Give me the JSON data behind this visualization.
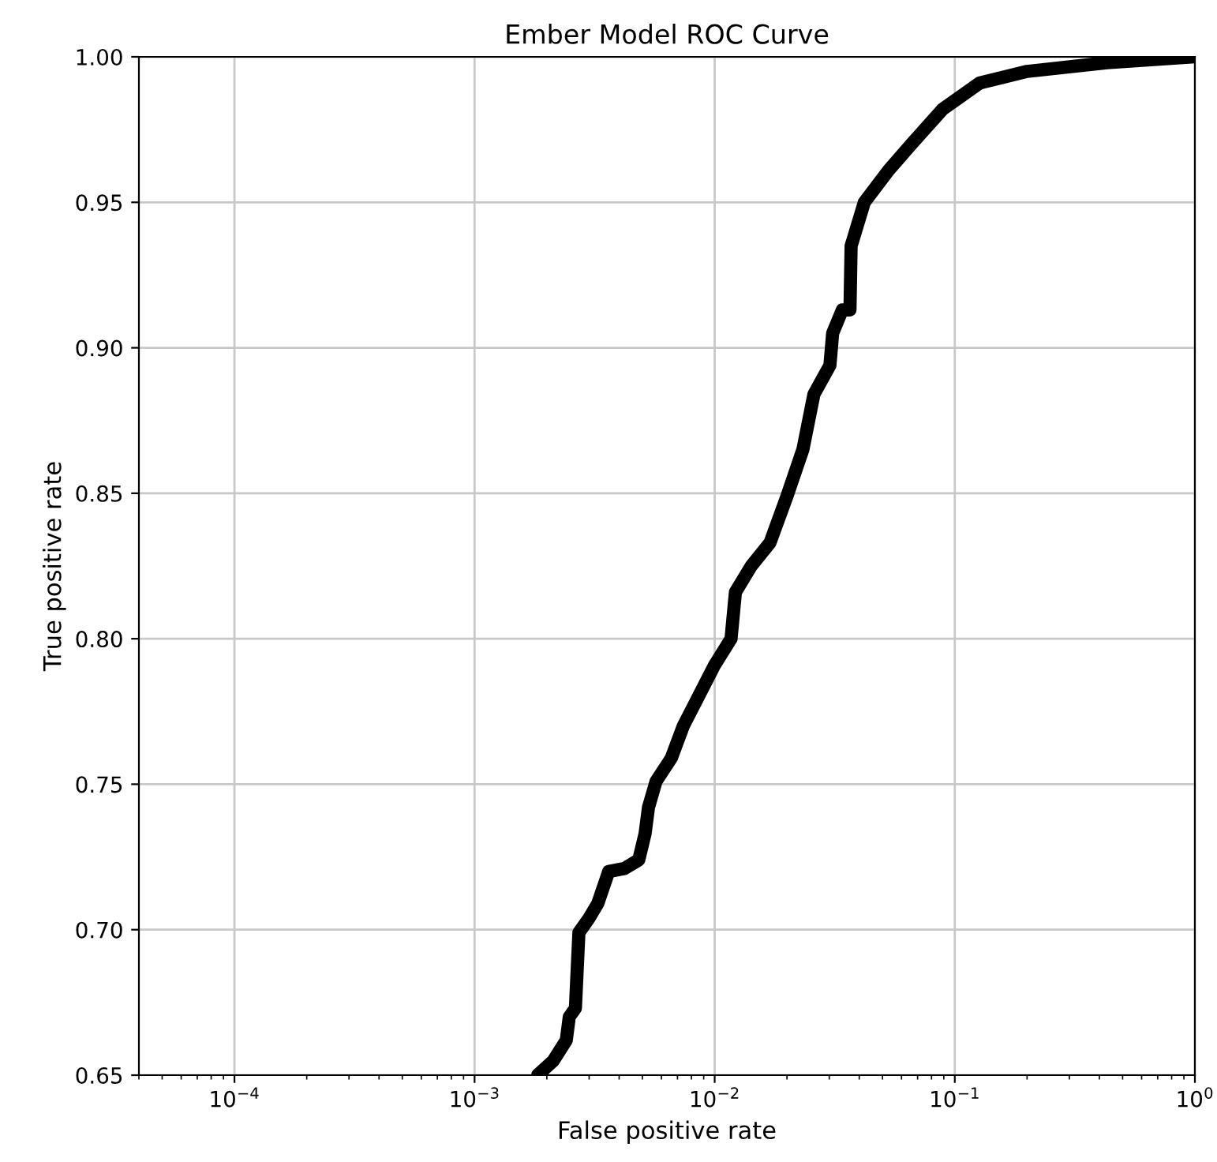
{
  "chart_data": {
    "type": "line",
    "title": "Ember Model ROC Curve",
    "xlabel": "False positive rate",
    "ylabel": "True positive rate",
    "log": "x",
    "grid": true,
    "marker": "none",
    "line_style": "solid",
    "xlim": [
      4e-05,
      1
    ],
    "ylim": [
      0.65,
      1.0
    ],
    "xticks": [
      {
        "value": 0.0001,
        "label": "10$^{−4}$"
      },
      {
        "value": 0.001,
        "label": "10$^{−3}$"
      },
      {
        "value": 0.01,
        "label": "10$^{−2}$"
      },
      {
        "value": 0.1,
        "label": "10$^{−1}$"
      },
      {
        "value": 1,
        "label": "10$^{0}$"
      }
    ],
    "yticks": [
      {
        "value": 0.65,
        "label": "0.65"
      },
      {
        "value": 0.7,
        "label": "0.70"
      },
      {
        "value": 0.75,
        "label": "0.75"
      },
      {
        "value": 0.8,
        "label": "0.80"
      },
      {
        "value": 0.85,
        "label": "0.85"
      },
      {
        "value": 0.9,
        "label": "0.90"
      },
      {
        "value": 0.95,
        "label": "0.95"
      },
      {
        "value": 1.0,
        "label": "1.00"
      }
    ],
    "series": [
      {
        "color": "#000000",
        "x": [
          0.00183,
          0.00213,
          0.00241,
          0.00248,
          0.00263,
          0.00272,
          0.003,
          0.00326,
          0.00362,
          0.0042,
          0.00483,
          0.00513,
          0.0053,
          0.0057,
          0.0066,
          0.0074,
          0.0083,
          0.01,
          0.0117,
          0.0122,
          0.0142,
          0.017,
          0.02,
          0.0233,
          0.0259,
          0.0302,
          0.031,
          0.034,
          0.0366,
          0.037,
          0.042,
          0.053,
          0.066,
          0.089,
          0.127,
          0.2,
          0.43,
          1.0
        ],
        "values": [
          0.65,
          0.655,
          0.662,
          0.67,
          0.673,
          0.699,
          0.704,
          0.709,
          0.72,
          0.721,
          0.724,
          0.733,
          0.742,
          0.751,
          0.759,
          0.77,
          0.778,
          0.791,
          0.8,
          0.816,
          0.825,
          0.833,
          0.849,
          0.865,
          0.884,
          0.894,
          0.905,
          0.913,
          0.913,
          0.935,
          0.95,
          0.961,
          0.97,
          0.982,
          0.991,
          0.995,
          0.998,
          1.0
        ]
      }
    ]
  }
}
